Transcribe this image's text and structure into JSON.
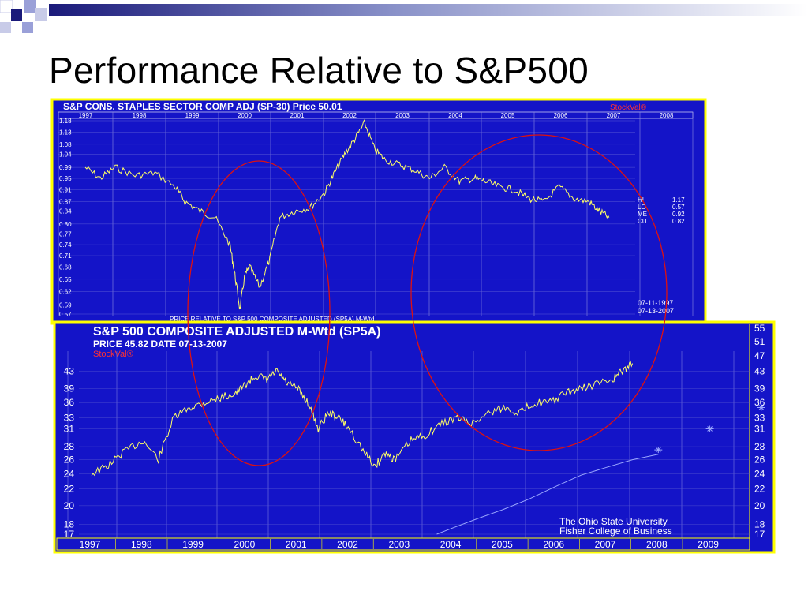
{
  "slide": {
    "title": "Performance Relative to S&P500",
    "accent_colors": [
      "#1a1a7a",
      "#9aa0d8",
      "#c8cbe8"
    ]
  },
  "chart_data": [
    {
      "type": "line",
      "title": "S&P CONS. STAPLES SECTOR COMP ADJ (SP-30)  Price 50.01",
      "watermark": "StockVal®",
      "subtitle": "PRICE RELATIVE TO S&P 500 COMPOSITE ADJUSTED (SP5A) M-Wtd",
      "background": "#1414c8",
      "frame_color": "#ffff00",
      "line_color": "#ffff66",
      "x_labels": [
        "1997",
        "1998",
        "1999",
        "2000",
        "2001",
        "2002",
        "2003",
        "2004",
        "2005",
        "2006",
        "2007",
        "2008"
      ],
      "y_ticks": [
        1.18,
        1.13,
        1.08,
        1.04,
        0.99,
        0.95,
        0.91,
        0.87,
        0.84,
        0.8,
        0.77,
        0.74,
        0.71,
        0.68,
        0.65,
        0.62,
        0.59,
        0.57
      ],
      "ylim": [
        0.57,
        1.18
      ],
      "scale": "log",
      "series": [
        {
          "x": [
            1997.0,
            1997.3,
            1997.6,
            1998.0,
            1998.4,
            1998.8,
            1999.0,
            1999.3,
            1999.6,
            1999.9,
            2000.0,
            2000.1,
            2000.2,
            2000.3,
            2000.5,
            2000.7,
            2000.9,
            2001.2,
            2001.5,
            2001.8,
            2002.0,
            2002.2,
            2002.4,
            2002.6,
            2002.8,
            2003.0,
            2003.3,
            2003.6,
            2003.9,
            2004.2,
            2004.5,
            2004.8,
            2005.0,
            2005.3,
            2005.6,
            2005.9,
            2006.2,
            2006.5,
            2006.8,
            2007.1,
            2007.3,
            2007.5
          ],
          "y": [
            0.99,
            0.95,
            0.99,
            0.96,
            0.97,
            0.92,
            0.87,
            0.84,
            0.82,
            0.74,
            0.66,
            0.58,
            0.66,
            0.68,
            0.63,
            0.7,
            0.82,
            0.84,
            0.85,
            0.9,
            0.97,
            1.04,
            1.1,
            1.17,
            1.06,
            1.02,
            1.0,
            0.98,
            0.95,
            0.99,
            0.94,
            0.95,
            0.94,
            0.92,
            0.91,
            0.88,
            0.87,
            0.92,
            0.88,
            0.87,
            0.84,
            0.82
          ]
        }
      ],
      "stats": [
        {
          "label": "HI",
          "value": "1.17"
        },
        {
          "label": "LO",
          "value": "0.57"
        },
        {
          "label": "ME",
          "value": "0.92"
        },
        {
          "label": "CU",
          "value": "0.82"
        }
      ],
      "date_range": [
        "07-11-1997",
        "07-13-2007"
      ]
    },
    {
      "type": "line",
      "title": "S&P 500 COMPOSITE ADJUSTED M-Wtd (SP5A)",
      "price_line": "PRICE 45.82  DATE 07-13-2007",
      "watermark": "StockVal®",
      "credit": [
        "The Ohio State University",
        "Fisher College of Business"
      ],
      "background": "#1414c8",
      "frame_color": "#ffff00",
      "line_color": "#ffff66",
      "secondary_line_color": "#9aa6ff",
      "x_labels": [
        "1997",
        "1998",
        "1999",
        "2000",
        "2001",
        "2002",
        "2003",
        "2004",
        "2005",
        "2006",
        "2007",
        "2008",
        "2009"
      ],
      "y_ticks_left": [
        43,
        39,
        36,
        33,
        31,
        28,
        26,
        24,
        22,
        20,
        18,
        17
      ],
      "y_ticks_right": [
        55,
        51,
        47,
        43,
        39,
        36,
        33,
        31,
        28,
        26,
        24,
        22,
        20,
        18,
        17
      ],
      "ylim": [
        17,
        55
      ],
      "scale": "log",
      "series": [
        {
          "x": [
            1997.0,
            1997.3,
            1997.6,
            1998.0,
            1998.3,
            1998.6,
            1998.9,
            1999.2,
            1999.5,
            1999.8,
            2000.0,
            2000.2,
            2000.4,
            2000.6,
            2000.8,
            2001.0,
            2001.2,
            2001.4,
            2001.6,
            2001.8,
            2002.0,
            2002.3,
            2002.5,
            2002.7,
            2002.9,
            2003.2,
            2003.5,
            2003.8,
            2004.1,
            2004.4,
            2004.7,
            2005.0,
            2005.3,
            2005.6,
            2005.9,
            2006.2,
            2006.5,
            2006.8,
            2007.1,
            2007.3,
            2007.5
          ],
          "y": [
            24,
            25,
            27,
            29,
            26,
            33,
            35,
            36,
            37,
            38,
            40,
            42,
            41,
            43,
            40,
            39,
            36,
            31,
            34,
            33,
            31,
            27,
            25,
            27,
            26,
            29,
            30,
            32,
            33,
            32,
            34,
            35,
            34,
            36,
            36,
            38,
            39,
            40,
            41,
            43,
            45
          ]
        },
        {
          "x": [
            2003.7,
            2004.0,
            2004.5,
            2005.0,
            2005.5,
            2006.0,
            2006.5,
            2007.0,
            2007.5,
            2008.0
          ],
          "y": [
            17,
            17.6,
            18.6,
            19.6,
            20.8,
            22.3,
            23.8,
            24.9,
            26.0,
            26.8
          ]
        }
      ],
      "markers": [
        {
          "x": 2008.0,
          "y": 27.5
        },
        {
          "x": 2009.0,
          "y": 31.0
        },
        {
          "x": 2010.0,
          "y": 35.0
        }
      ]
    }
  ],
  "annotations": {
    "ellipse_color": "#dd1111"
  }
}
